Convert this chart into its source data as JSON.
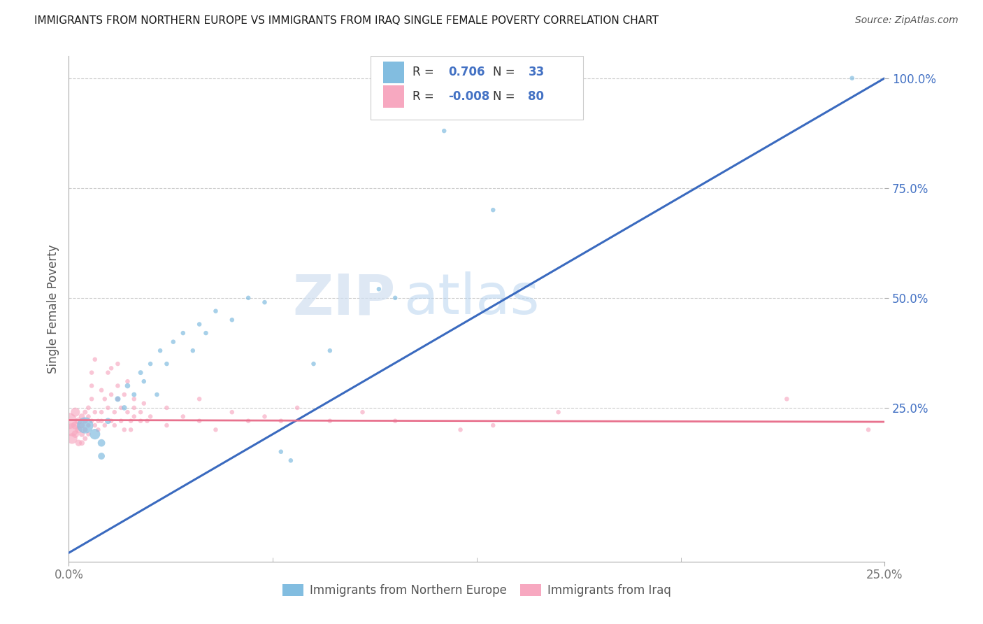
{
  "title": "IMMIGRANTS FROM NORTHERN EUROPE VS IMMIGRANTS FROM IRAQ SINGLE FEMALE POVERTY CORRELATION CHART",
  "source": "Source: ZipAtlas.com",
  "ylabel": "Single Female Poverty",
  "xlim": [
    0.0,
    0.25
  ],
  "ylim": [
    -0.1,
    1.05
  ],
  "r_blue": "0.706",
  "n_blue": "33",
  "r_pink": "-0.008",
  "n_pink": "80",
  "blue_color": "#82bde0",
  "pink_color": "#f7a8c0",
  "blue_line_color": "#3a6abf",
  "pink_line_color": "#e8728e",
  "watermark_zip": "ZIP",
  "watermark_atlas": "atlas",
  "legend_label_blue": "Immigrants from Northern Europe",
  "legend_label_pink": "Immigrants from Iraq",
  "blue_scatter": [
    [
      0.005,
      0.21
    ],
    [
      0.008,
      0.19
    ],
    [
      0.01,
      0.17
    ],
    [
      0.01,
      0.14
    ],
    [
      0.012,
      0.22
    ],
    [
      0.015,
      0.27
    ],
    [
      0.017,
      0.25
    ],
    [
      0.018,
      0.3
    ],
    [
      0.02,
      0.28
    ],
    [
      0.022,
      0.33
    ],
    [
      0.023,
      0.31
    ],
    [
      0.025,
      0.35
    ],
    [
      0.027,
      0.28
    ],
    [
      0.028,
      0.38
    ],
    [
      0.03,
      0.35
    ],
    [
      0.032,
      0.4
    ],
    [
      0.035,
      0.42
    ],
    [
      0.038,
      0.38
    ],
    [
      0.04,
      0.44
    ],
    [
      0.042,
      0.42
    ],
    [
      0.045,
      0.47
    ],
    [
      0.05,
      0.45
    ],
    [
      0.055,
      0.5
    ],
    [
      0.06,
      0.49
    ],
    [
      0.065,
      0.15
    ],
    [
      0.068,
      0.13
    ],
    [
      0.075,
      0.35
    ],
    [
      0.08,
      0.38
    ],
    [
      0.095,
      0.52
    ],
    [
      0.1,
      0.5
    ],
    [
      0.115,
      0.88
    ],
    [
      0.13,
      0.7
    ],
    [
      0.24,
      1.0
    ]
  ],
  "blue_sizes": [
    280,
    120,
    60,
    50,
    40,
    35,
    30,
    30,
    25,
    25,
    22,
    22,
    22,
    22,
    22,
    22,
    22,
    22,
    22,
    22,
    22,
    22,
    22,
    22,
    22,
    22,
    22,
    22,
    22,
    22,
    22,
    22,
    22
  ],
  "pink_scatter": [
    [
      0.0,
      0.22
    ],
    [
      0.001,
      0.2
    ],
    [
      0.001,
      0.18
    ],
    [
      0.002,
      0.24
    ],
    [
      0.002,
      0.21
    ],
    [
      0.002,
      0.19
    ],
    [
      0.003,
      0.22
    ],
    [
      0.003,
      0.2
    ],
    [
      0.003,
      0.17
    ],
    [
      0.004,
      0.23
    ],
    [
      0.004,
      0.21
    ],
    [
      0.004,
      0.19
    ],
    [
      0.004,
      0.17
    ],
    [
      0.005,
      0.22
    ],
    [
      0.005,
      0.2
    ],
    [
      0.005,
      0.24
    ],
    [
      0.005,
      0.18
    ],
    [
      0.006,
      0.25
    ],
    [
      0.006,
      0.23
    ],
    [
      0.006,
      0.21
    ],
    [
      0.006,
      0.19
    ],
    [
      0.007,
      0.22
    ],
    [
      0.007,
      0.27
    ],
    [
      0.007,
      0.3
    ],
    [
      0.007,
      0.33
    ],
    [
      0.008,
      0.21
    ],
    [
      0.008,
      0.24
    ],
    [
      0.008,
      0.36
    ],
    [
      0.009,
      0.22
    ],
    [
      0.009,
      0.2
    ],
    [
      0.01,
      0.24
    ],
    [
      0.01,
      0.22
    ],
    [
      0.01,
      0.29
    ],
    [
      0.011,
      0.21
    ],
    [
      0.011,
      0.27
    ],
    [
      0.012,
      0.33
    ],
    [
      0.012,
      0.25
    ],
    [
      0.013,
      0.22
    ],
    [
      0.013,
      0.28
    ],
    [
      0.013,
      0.34
    ],
    [
      0.014,
      0.24
    ],
    [
      0.014,
      0.21
    ],
    [
      0.015,
      0.27
    ],
    [
      0.015,
      0.3
    ],
    [
      0.015,
      0.35
    ],
    [
      0.016,
      0.22
    ],
    [
      0.016,
      0.25
    ],
    [
      0.017,
      0.2
    ],
    [
      0.017,
      0.28
    ],
    [
      0.018,
      0.24
    ],
    [
      0.018,
      0.31
    ],
    [
      0.019,
      0.22
    ],
    [
      0.019,
      0.2
    ],
    [
      0.02,
      0.25
    ],
    [
      0.02,
      0.27
    ],
    [
      0.02,
      0.23
    ],
    [
      0.022,
      0.22
    ],
    [
      0.022,
      0.24
    ],
    [
      0.023,
      0.26
    ],
    [
      0.024,
      0.22
    ],
    [
      0.025,
      0.23
    ],
    [
      0.03,
      0.21
    ],
    [
      0.03,
      0.25
    ],
    [
      0.035,
      0.23
    ],
    [
      0.04,
      0.22
    ],
    [
      0.04,
      0.27
    ],
    [
      0.045,
      0.2
    ],
    [
      0.05,
      0.24
    ],
    [
      0.055,
      0.22
    ],
    [
      0.06,
      0.23
    ],
    [
      0.065,
      0.22
    ],
    [
      0.07,
      0.25
    ],
    [
      0.08,
      0.22
    ],
    [
      0.09,
      0.24
    ],
    [
      0.1,
      0.22
    ],
    [
      0.12,
      0.2
    ],
    [
      0.13,
      0.21
    ],
    [
      0.15,
      0.24
    ],
    [
      0.22,
      0.27
    ],
    [
      0.245,
      0.2
    ]
  ],
  "pink_sizes": [
    280,
    180,
    120,
    90,
    70,
    60,
    55,
    50,
    45,
    40,
    38,
    35,
    32,
    30,
    28,
    26,
    25,
    24,
    23,
    22,
    22,
    22,
    22,
    22,
    22,
    22,
    22,
    22,
    22,
    22,
    22,
    22,
    22,
    22,
    22,
    22,
    22,
    22,
    22,
    22,
    22,
    22,
    22,
    22,
    22,
    22,
    22,
    22,
    22,
    22,
    22,
    22,
    22,
    22,
    22,
    22,
    22,
    22,
    22,
    22,
    22,
    22,
    22,
    22,
    22,
    22,
    22,
    22,
    22,
    22,
    22,
    22,
    22,
    22,
    22,
    22,
    22,
    22,
    22,
    22
  ],
  "blue_line_x": [
    0.0,
    0.25
  ],
  "blue_line_y": [
    -0.08,
    1.0
  ],
  "pink_line_x": [
    0.0,
    0.25
  ],
  "pink_line_y": [
    0.222,
    0.218
  ],
  "ytick_vals": [
    0.25,
    0.5,
    0.75,
    1.0
  ],
  "ytick_labs": [
    "25.0%",
    "50.0%",
    "75.0%",
    "100.0%"
  ],
  "bg_color": "#ffffff",
  "grid_color": "#cccccc",
  "ytick_color": "#4472c4",
  "xtick_color": "#777777",
  "spine_color": "#aaaaaa",
  "title_color": "#1a1a1a",
  "source_color": "#555555",
  "ylabel_color": "#555555"
}
